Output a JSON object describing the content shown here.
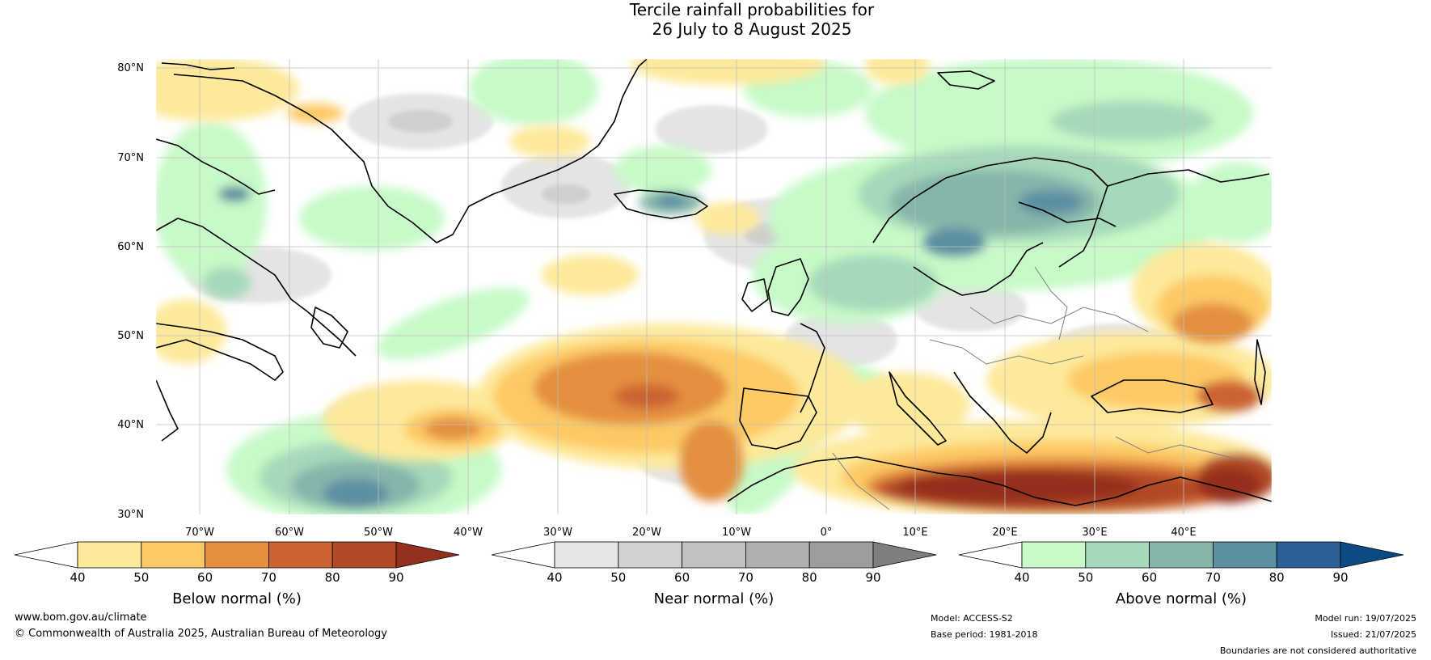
{
  "title": {
    "line1": "Tercile rainfall probabilities for",
    "line2": "26 July to 8 August 2025"
  },
  "map": {
    "lat_labels": [
      "80°N",
      "70°N",
      "60°N",
      "50°N",
      "40°N",
      "30°N"
    ],
    "lon_labels": [
      "70°W",
      "60°W",
      "50°W",
      "40°W",
      "30°W",
      "20°W",
      "10°W",
      "0°",
      "10°E",
      "20°E",
      "30°E",
      "40°E"
    ]
  },
  "colorbars": [
    {
      "id": "below",
      "label": "Below normal (%)",
      "ticks": [
        "40",
        "50",
        "60",
        "70",
        "80",
        "90"
      ],
      "colors": [
        "#ffffff",
        "#fde99a",
        "#fdc965",
        "#e3903f",
        "#cc6330",
        "#b24a27",
        "#952f1e"
      ]
    },
    {
      "id": "near",
      "label": "Near normal (%)",
      "ticks": [
        "40",
        "50",
        "60",
        "70",
        "80",
        "90"
      ],
      "colors": [
        "#ffffff",
        "#e6e6e6",
        "#d1d1d1",
        "#c1c1c1",
        "#b0b0b0",
        "#9d9d9d",
        "#7f7f7f"
      ]
    },
    {
      "id": "above",
      "label": "Above normal (%)",
      "ticks": [
        "40",
        "50",
        "60",
        "70",
        "80",
        "90"
      ],
      "colors": [
        "#ffffff",
        "#c6fac8",
        "#a6d9b9",
        "#85b5ab",
        "#5c8fa2",
        "#2d5e97",
        "#0b4a83"
      ]
    }
  ],
  "footer": {
    "website": "www.bom.gov.au/climate",
    "copyright": "© Commonwealth of Australia 2025, Australian Bureau of Meteorology",
    "model": "Model: ACCESS-S2",
    "base_period": "Base period: 1981-2018",
    "model_run": "Model run: 19/07/2025",
    "issued": "Issued: 21/07/2025",
    "boundaries": "Boundaries are not considered authoritative"
  }
}
